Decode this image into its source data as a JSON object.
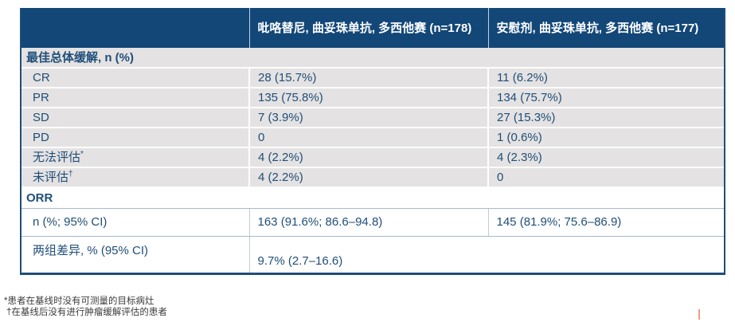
{
  "colors": {
    "header_bg": "#124778",
    "body_text": "#1F4E79",
    "row_gray_bg": "#E4E2E2",
    "outer_border": "#1F4E79",
    "white_section_border": "#A6B8CC",
    "footnote_text": "#3C3C3C",
    "artifact_mark": "#E8A080"
  },
  "table": {
    "header": {
      "col1": "",
      "col2": "吡咯替尼, 曲妥珠单抗, 多西他赛 (n=178)",
      "col3": "安慰剂, 曲妥珠单抗, 多西他赛 (n=177)"
    },
    "section1_title": "最佳总体缓解, n (%)",
    "body_rows": [
      {
        "label": "CR",
        "sup": "",
        "col2": "28 (15.7%)",
        "col3": "11 (6.2%)"
      },
      {
        "label": "PR",
        "sup": "",
        "col2": "135 (75.8%)",
        "col3": "134 (75.7%)"
      },
      {
        "label": "SD",
        "sup": "",
        "col2": "7 (3.9%)",
        "col3": "27 (15.3%)"
      },
      {
        "label": "PD",
        "sup": "",
        "col2": "0",
        "col3": "1 (0.6%)"
      },
      {
        "label": "无法评估",
        "sup": "*",
        "col2": "4 (2.2%)",
        "col3": "4 (2.3%)"
      },
      {
        "label": "未评估",
        "sup": "†",
        "col2": "4 (2.2%)",
        "col3": "0"
      }
    ],
    "section2_title": "ORR",
    "orr_row": {
      "label": "n (%; 95% CI)",
      "col2": "163 (91.6%; 86.6–94.8)",
      "col3": "145 (81.9%; 75.6–86.9)"
    },
    "diff_row": {
      "label": "两组差异, % (95% CI)",
      "value": "9.7% (2.7–16.6)"
    }
  },
  "footnotes": [
    "*患者在基线时没有可测量的目标病灶",
    "†在基线后没有进行肿瘤缓解评估的患者"
  ]
}
